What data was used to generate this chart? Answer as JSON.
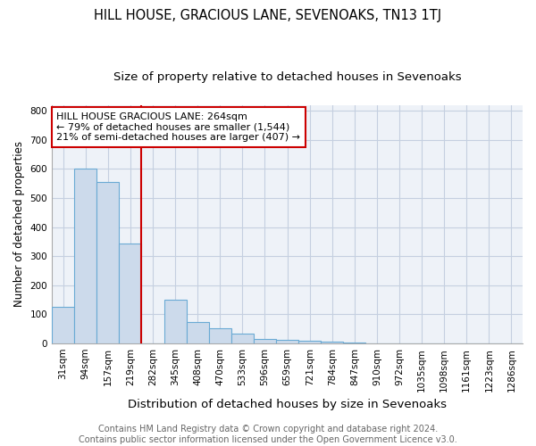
{
  "title": "HILL HOUSE, GRACIOUS LANE, SEVENOAKS, TN13 1TJ",
  "subtitle": "Size of property relative to detached houses in Sevenoaks",
  "xlabel": "Distribution of detached houses by size in Sevenoaks",
  "ylabel": "Number of detached properties",
  "categories": [
    "31sqm",
    "94sqm",
    "157sqm",
    "219sqm",
    "282sqm",
    "345sqm",
    "408sqm",
    "470sqm",
    "533sqm",
    "596sqm",
    "659sqm",
    "721sqm",
    "784sqm",
    "847sqm",
    "910sqm",
    "972sqm",
    "1035sqm",
    "1098sqm",
    "1161sqm",
    "1223sqm",
    "1286sqm"
  ],
  "values": [
    125,
    600,
    555,
    345,
    0,
    150,
    75,
    52,
    33,
    15,
    12,
    10,
    7,
    2,
    0,
    0,
    0,
    0,
    0,
    0,
    0
  ],
  "bar_color": "#ccdaeb",
  "bar_edge_color": "#6aaad4",
  "red_line_x": 4.5,
  "annotation_text": "HILL HOUSE GRACIOUS LANE: 264sqm\n← 79% of detached houses are smaller (1,544)\n21% of semi-detached houses are larger (407) →",
  "annotation_box_color": "#ffffff",
  "annotation_box_edge": "#cc0000",
  "red_line_color": "#cc0000",
  "grid_color": "#c5cfe0",
  "background_color": "#eef2f8",
  "ylim": [
    0,
    820
  ],
  "yticks": [
    0,
    100,
    200,
    300,
    400,
    500,
    600,
    700,
    800
  ],
  "footer_line1": "Contains HM Land Registry data © Crown copyright and database right 2024.",
  "footer_line2": "Contains public sector information licensed under the Open Government Licence v3.0.",
  "title_fontsize": 10.5,
  "subtitle_fontsize": 9.5,
  "xlabel_fontsize": 9.5,
  "ylabel_fontsize": 8.5,
  "tick_fontsize": 7.5,
  "footer_fontsize": 7,
  "annotation_fontsize": 8
}
